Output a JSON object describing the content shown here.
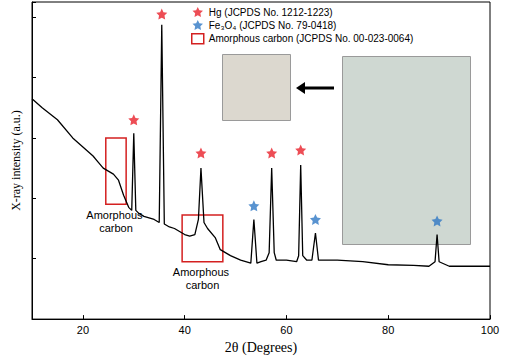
{
  "chart_data": {
    "type": "line",
    "x_label": "2θ (Degrees)",
    "y_label": "X-ray intensity (a.u.)",
    "x": [
      10,
      12,
      15,
      18,
      20,
      22,
      23,
      24,
      25,
      26,
      27,
      28,
      29,
      29.6,
      30,
      30.4,
      31,
      32,
      33,
      34,
      35,
      35.5,
      36,
      37,
      38,
      40,
      41,
      42,
      42.7,
      43.2,
      43.8,
      44.5,
      46,
      47,
      48,
      49,
      51,
      53,
      53.6,
      54.2,
      55,
      56,
      56.6,
      57.1,
      57.6,
      58,
      60,
      62,
      62.4,
      62.8,
      63.2,
      64,
      65,
      65.7,
      66.3,
      68,
      70,
      75,
      80,
      85,
      88,
      89.2,
      89.6,
      90,
      92,
      95,
      100
    ],
    "values": [
      73,
      70,
      66,
      60,
      57,
      54,
      52,
      50,
      49,
      48,
      46,
      41,
      37,
      36,
      61.5,
      36,
      35,
      34,
      33.5,
      33,
      32,
      97.5,
      31.5,
      30.5,
      30,
      28,
      27.5,
      28,
      33,
      50,
      32,
      30,
      27,
      23,
      22,
      21,
      19.5,
      18.5,
      33,
      18.5,
      19,
      19.5,
      22,
      50,
      22,
      19.5,
      19.5,
      19,
      21,
      51,
      21,
      19.5,
      19.5,
      28.5,
      19.5,
      19.5,
      19.5,
      19,
      18,
      17.8,
      17.5,
      19,
      28,
      19,
      17.5,
      17.5,
      17.5
    ],
    "color": "#000000",
    "xlim": [
      10,
      100
    ],
    "xticks": [
      20,
      40,
      60,
      80,
      100
    ],
    "ylim": [
      0,
      105
    ],
    "yticks": [
      0,
      20,
      40,
      60,
      80,
      100
    ],
    "tick_labels": "x",
    "grid": false,
    "legend": "top",
    "markers": [
      {
        "name": "Hg (JCPDS No. 1212-1223)",
        "color": "#e8202a",
        "marker": "star",
        "x": [
          30,
          35.5,
          43.2,
          57.1,
          62.8
        ],
        "y": [
          66,
          101,
          55,
          55,
          56
        ]
      },
      {
        "name": "Fe₃O₄ (JCPDS No. 79-0418)",
        "color": "#2f78c4",
        "marker": "star",
        "x": [
          53.6,
          65.7,
          89.6
        ],
        "y": [
          37.5,
          33,
          32.5
        ]
      }
    ],
    "regions": {
      "name": "Amorphous carbon (JCPDS No. 00-023-0064)",
      "color": "#d42020",
      "marker": "square",
      "boxes": [
        {
          "x": [
            24.5,
            28.5
          ],
          "y": [
            38,
            60
          ],
          "label": "Amorphous carbon"
        },
        {
          "x": [
            39.5,
            47.5
          ],
          "y": [
            19,
            34.5
          ],
          "label": "Amorphous carbon"
        }
      ]
    }
  }
}
